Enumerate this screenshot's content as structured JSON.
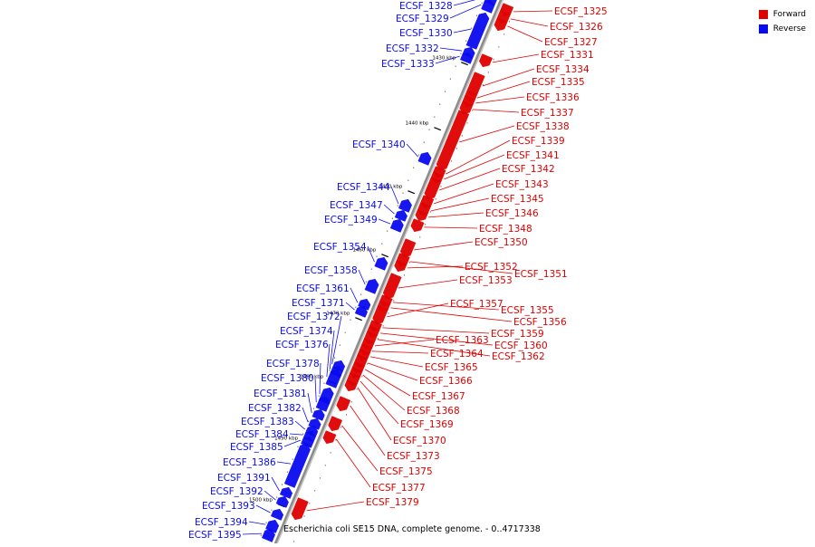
{
  "caption": "Escherichia coli SE15 DNA, complete genome. - 0..4717338",
  "legend": {
    "forward": {
      "label": "Forward",
      "color": "#e00000"
    },
    "reverse": {
      "label": "Reverse",
      "color": "#0a0af0"
    }
  },
  "colors": {
    "forward": "#e00000",
    "reverse": "#0a0af0",
    "backbone": "#8c8c8c"
  },
  "ticks": [
    "1430 kbp",
    "1440 kbp",
    "1450 kbp",
    "1460 kbp",
    "1470 kbp",
    "1480 kbp",
    "1490 kbp",
    "1500 kbp"
  ],
  "genes": [
    {
      "name": "ECSF_1325",
      "strand": "forward"
    },
    {
      "name": "ECSF_1326",
      "strand": "forward"
    },
    {
      "name": "ECSF_1327",
      "strand": "forward"
    },
    {
      "name": "ECSF_1328",
      "strand": "reverse"
    },
    {
      "name": "ECSF_1329",
      "strand": "reverse"
    },
    {
      "name": "ECSF_1330",
      "strand": "reverse"
    },
    {
      "name": "ECSF_1331",
      "strand": "forward"
    },
    {
      "name": "ECSF_1332",
      "strand": "reverse"
    },
    {
      "name": "ECSF_1333",
      "strand": "reverse"
    },
    {
      "name": "ECSF_1334",
      "strand": "forward"
    },
    {
      "name": "ECSF_1335",
      "strand": "forward"
    },
    {
      "name": "ECSF_1336",
      "strand": "forward"
    },
    {
      "name": "ECSF_1337",
      "strand": "forward"
    },
    {
      "name": "ECSF_1338",
      "strand": "forward"
    },
    {
      "name": "ECSF_1339",
      "strand": "forward"
    },
    {
      "name": "ECSF_1340",
      "strand": "reverse"
    },
    {
      "name": "ECSF_1341",
      "strand": "forward"
    },
    {
      "name": "ECSF_1342",
      "strand": "forward"
    },
    {
      "name": "ECSF_1343",
      "strand": "forward"
    },
    {
      "name": "ECSF_1344",
      "strand": "reverse"
    },
    {
      "name": "ECSF_1345",
      "strand": "forward"
    },
    {
      "name": "ECSF_1346",
      "strand": "forward"
    },
    {
      "name": "ECSF_1347",
      "strand": "reverse"
    },
    {
      "name": "ECSF_1348",
      "strand": "forward"
    },
    {
      "name": "ECSF_1349",
      "strand": "reverse"
    },
    {
      "name": "ECSF_1350",
      "strand": "forward"
    },
    {
      "name": "ECSF_1351",
      "strand": "forward"
    },
    {
      "name": "ECSF_1352",
      "strand": "forward"
    },
    {
      "name": "ECSF_1353",
      "strand": "forward"
    },
    {
      "name": "ECSF_1354",
      "strand": "reverse"
    },
    {
      "name": "ECSF_1355",
      "strand": "forward"
    },
    {
      "name": "ECSF_1356",
      "strand": "forward"
    },
    {
      "name": "ECSF_1357",
      "strand": "forward"
    },
    {
      "name": "ECSF_1358",
      "strand": "reverse"
    },
    {
      "name": "ECSF_1359",
      "strand": "forward"
    },
    {
      "name": "ECSF_1360",
      "strand": "forward"
    },
    {
      "name": "ECSF_1361",
      "strand": "reverse"
    },
    {
      "name": "ECSF_1362",
      "strand": "forward"
    },
    {
      "name": "ECSF_1363",
      "strand": "forward"
    },
    {
      "name": "ECSF_1364",
      "strand": "forward"
    },
    {
      "name": "ECSF_1365",
      "strand": "forward"
    },
    {
      "name": "ECSF_1366",
      "strand": "forward"
    },
    {
      "name": "ECSF_1367",
      "strand": "forward"
    },
    {
      "name": "ECSF_1368",
      "strand": "forward"
    },
    {
      "name": "ECSF_1369",
      "strand": "forward"
    },
    {
      "name": "ECSF_1370",
      "strand": "forward"
    },
    {
      "name": "ECSF_1371",
      "strand": "reverse"
    },
    {
      "name": "ECSF_1372",
      "strand": "reverse"
    },
    {
      "name": "ECSF_1373",
      "strand": "forward"
    },
    {
      "name": "ECSF_1374",
      "strand": "reverse"
    },
    {
      "name": "ECSF_1375",
      "strand": "forward"
    },
    {
      "name": "ECSF_1376",
      "strand": "reverse"
    },
    {
      "name": "ECSF_1377",
      "strand": "forward"
    },
    {
      "name": "ECSF_1378",
      "strand": "reverse"
    },
    {
      "name": "ECSF_1379",
      "strand": "forward"
    },
    {
      "name": "ECSF_1380",
      "strand": "reverse"
    },
    {
      "name": "ECSF_1381",
      "strand": "reverse"
    },
    {
      "name": "ECSF_1382",
      "strand": "reverse"
    },
    {
      "name": "ECSF_1383",
      "strand": "reverse"
    },
    {
      "name": "ECSF_1384",
      "strand": "reverse"
    },
    {
      "name": "ECSF_1385",
      "strand": "reverse"
    },
    {
      "name": "ECSF_1386",
      "strand": "reverse"
    },
    {
      "name": "ECSF_1391",
      "strand": "reverse"
    },
    {
      "name": "ECSF_1392",
      "strand": "reverse"
    },
    {
      "name": "ECSF_1393",
      "strand": "reverse"
    },
    {
      "name": "ECSF_1394",
      "strand": "reverse"
    },
    {
      "name": "ECSF_1395",
      "strand": "reverse"
    }
  ]
}
